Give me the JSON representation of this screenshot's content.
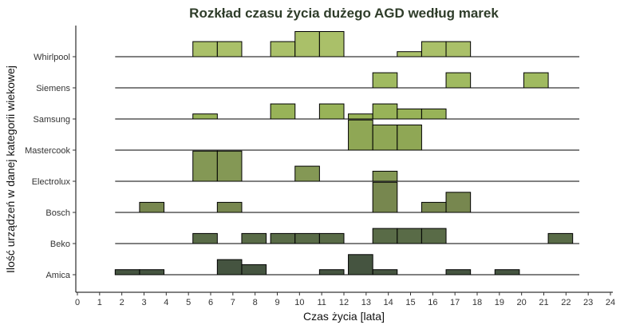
{
  "chart_data": {
    "type": "ridgeline-histogram",
    "title": "Rozkład czasu życia dużego AGD według marek",
    "xlabel": "Czas życia [lata]",
    "ylabel": "Ilość urządzeń w danej kategorii wiekowej",
    "xlim": [
      0,
      24
    ],
    "x_ticks": [
      0,
      1,
      2,
      3,
      4,
      5,
      6,
      7,
      8,
      9,
      10,
      11,
      12,
      13,
      14,
      15,
      16,
      17,
      18,
      19,
      20,
      21,
      22,
      23,
      24
    ],
    "baseline_range": [
      1.7,
      22.6
    ],
    "bin_width": 1.1,
    "bin_starts": [
      1.7,
      2.8,
      3.9,
      5.2,
      6.3,
      7.4,
      8.7,
      9.8,
      10.9,
      12.2,
      13.3,
      14.4,
      15.5,
      16.6,
      17.7,
      18.8,
      20.1,
      21.2
    ],
    "grid": false,
    "legend": "none",
    "series": [
      {
        "name": "Amica",
        "color": "#354530",
        "values": [
          1,
          1,
          0,
          0,
          3,
          2,
          0,
          0,
          1,
          4,
          1,
          0,
          0,
          1,
          0,
          1,
          0,
          0
        ]
      },
      {
        "name": "Beko",
        "color": "#4b5e37",
        "values": [
          0,
          0,
          0,
          2,
          0,
          2,
          2,
          2,
          2,
          0,
          3,
          3,
          3,
          0,
          0,
          0,
          0,
          2
        ]
      },
      {
        "name": "Bosch",
        "color": "#6b7d40",
        "values": [
          0,
          2,
          0,
          0,
          2,
          0,
          0,
          0,
          0,
          0,
          6,
          0,
          2,
          4,
          0,
          0,
          0,
          0
        ]
      },
      {
        "name": "Electrolux",
        "color": "#7a8f46",
        "values": [
          0,
          0,
          0,
          6,
          6,
          0,
          0,
          3,
          0,
          0,
          2,
          0,
          0,
          0,
          0,
          0,
          0,
          0
        ]
      },
      {
        "name": "Mastercook",
        "color": "#86a046",
        "values": [
          0,
          0,
          0,
          0,
          0,
          0,
          0,
          0,
          0,
          6,
          5,
          5,
          0,
          0,
          0,
          0,
          0,
          0
        ]
      },
      {
        "name": "Samsung",
        "color": "#8fad4a",
        "values": [
          0,
          0,
          0,
          1,
          0,
          0,
          3,
          0,
          3,
          1,
          3,
          2,
          2,
          0,
          0,
          0,
          0,
          0
        ]
      },
      {
        "name": "Siemens",
        "color": "#98b452",
        "values": [
          0,
          0,
          0,
          0,
          0,
          0,
          0,
          0,
          0,
          0,
          3,
          0,
          0,
          3,
          0,
          0,
          3,
          0
        ]
      },
      {
        "name": "Whirlpool",
        "color": "#a3bb5c",
        "values": [
          0,
          0,
          0,
          3,
          3,
          0,
          3,
          5,
          5,
          0,
          0,
          1,
          3,
          3,
          0,
          0,
          0,
          0
        ]
      }
    ]
  }
}
